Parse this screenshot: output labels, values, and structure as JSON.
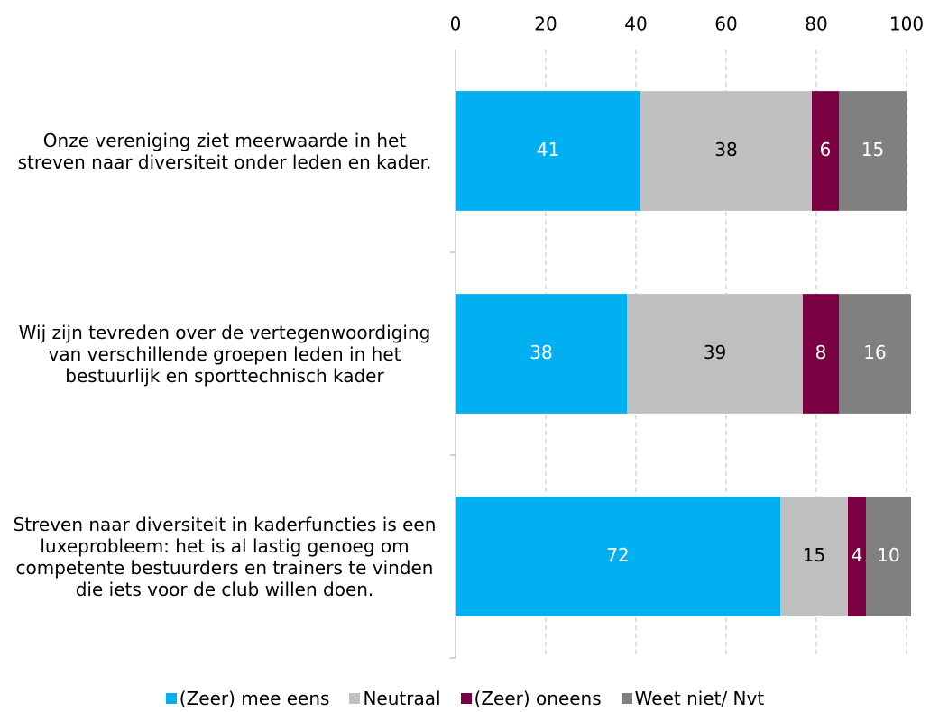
{
  "chart_data": {
    "type": "stacked-bar-horizontal",
    "categories": [
      "Onze vereniging ziet meerwaarde in het streven naar diversiteit onder leden en kader.",
      "Wij zijn tevreden over de vertegenwoordiging van verschillende groepen leden in het bestuurlijk en sporttechnisch kader",
      "Streven naar diversiteit in kaderfuncties is een luxeprobleem: het is al lastig genoeg om competente bestuurders en trainers te vinden die iets voor de club willen doen."
    ],
    "series": [
      {
        "name": "(Zeer) mee eens",
        "color": "#00b0f0",
        "label_color": "#ffffff",
        "values": [
          41,
          38,
          72
        ]
      },
      {
        "name": "Neutraal",
        "color": "#bfbfbf",
        "label_color": "#000000",
        "values": [
          38,
          39,
          15
        ]
      },
      {
        "name": "(Zeer) oneens",
        "color": "#7b0041",
        "label_color": "#ffffff",
        "values": [
          6,
          8,
          4
        ]
      },
      {
        "name": "Weet niet/ Nvt",
        "color": "#808080",
        "label_color": "#ffffff",
        "values": [
          15,
          16,
          10
        ]
      }
    ],
    "xlim": [
      0,
      100
    ],
    "xticks": [
      0,
      20,
      40,
      60,
      80,
      100
    ],
    "grid": true,
    "legend": "bottom"
  }
}
